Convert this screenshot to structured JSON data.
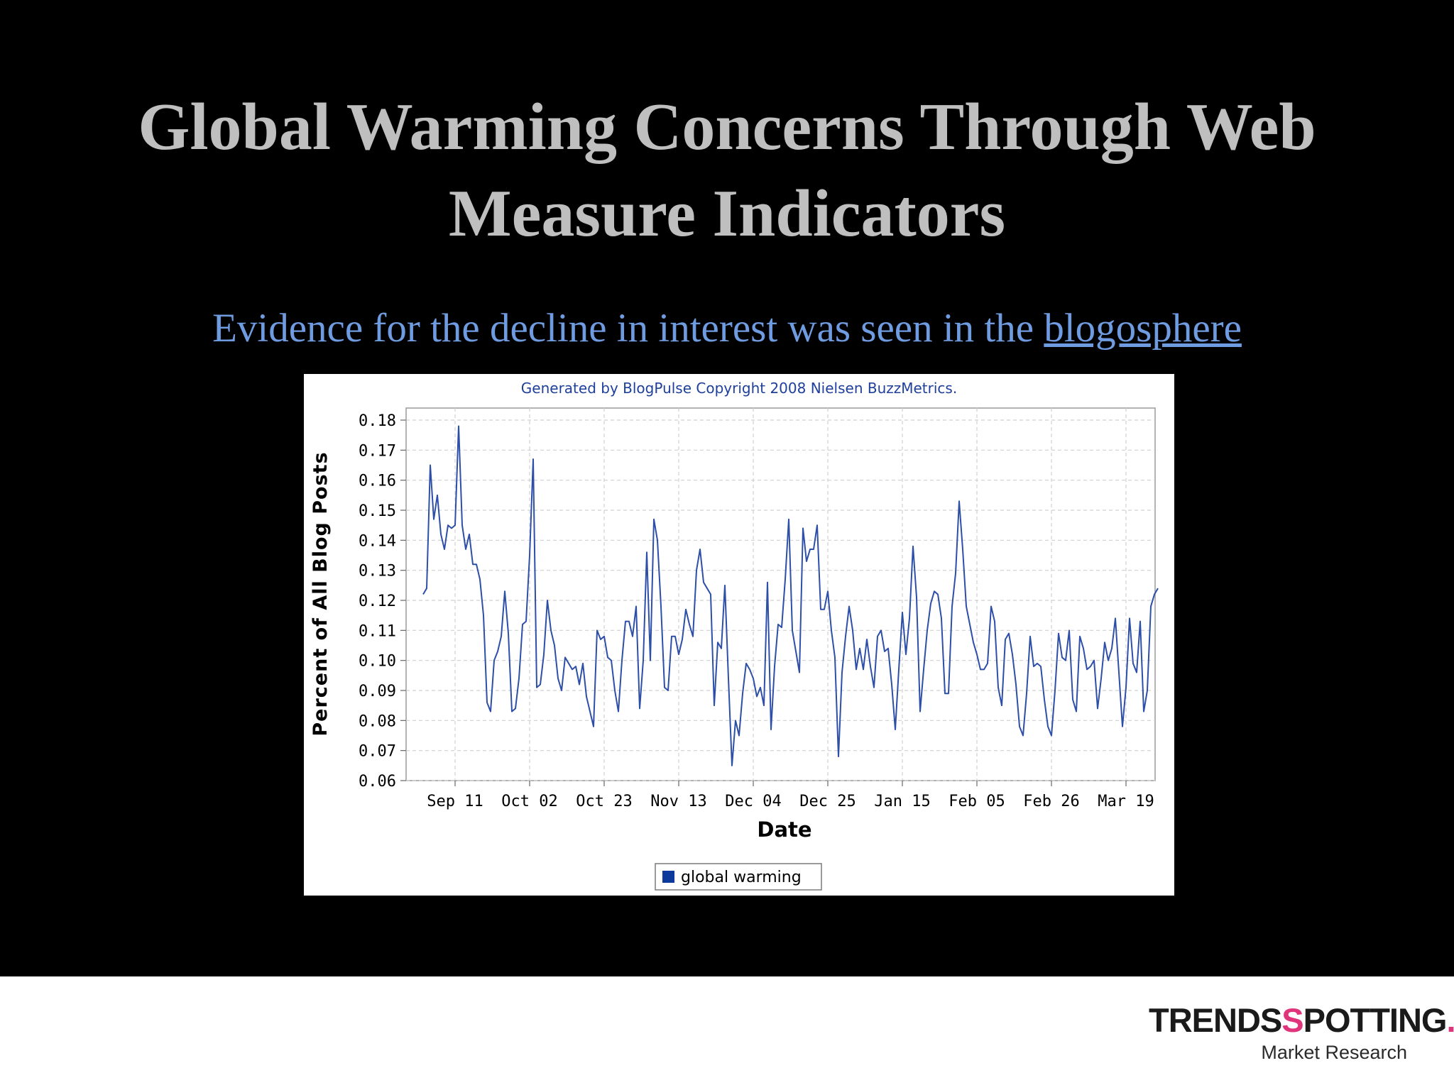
{
  "slide": {
    "title_line1": "Global Warming Concerns Through Web",
    "title_line2": "Measure Indicators",
    "subtitle_text": "Evidence for the decline in interest was seen in the ",
    "subtitle_link": "blogosphere"
  },
  "logo": {
    "brand_part1": "TRENDS",
    "brand_mark": "S",
    "brand_part2": "POTTING",
    "brand_dot": ".",
    "tagline": "Market Research"
  },
  "chart_data": {
    "type": "line",
    "title": "Generated by BlogPulse Copyright 2008 Nielsen BuzzMetrics.",
    "xlabel": "Date",
    "ylabel": "Percent of All Blog Posts",
    "ylim": [
      0.06,
      0.18
    ],
    "yticks": [
      "0.18",
      "0.17",
      "0.16",
      "0.15",
      "0.14",
      "0.13",
      "0.12",
      "0.11",
      "0.10",
      "0.09",
      "0.08",
      "0.07",
      "0.06"
    ],
    "xticks": [
      "Sep 11",
      "Oct 02",
      "Oct 23",
      "Nov 13",
      "Dec 04",
      "Dec 25",
      "Jan 15",
      "Feb 05",
      "Feb 26",
      "Mar 19"
    ],
    "x_start_day": -9,
    "grid": true,
    "legend_position": "bottom-center",
    "line_color": "#2e4fa8",
    "legend_swatch_color": "#0b3a9c",
    "series": [
      {
        "name": "global warming",
        "values": [
          0.122,
          0.124,
          0.165,
          0.147,
          0.155,
          0.142,
          0.137,
          0.145,
          0.144,
          0.145,
          0.178,
          0.145,
          0.137,
          0.142,
          0.132,
          0.132,
          0.127,
          0.115,
          0.086,
          0.083,
          0.1,
          0.103,
          0.108,
          0.123,
          0.109,
          0.083,
          0.084,
          0.094,
          0.112,
          0.113,
          0.135,
          0.167,
          0.091,
          0.092,
          0.102,
          0.12,
          0.11,
          0.105,
          0.094,
          0.09,
          0.101,
          0.099,
          0.097,
          0.098,
          0.092,
          0.099,
          0.088,
          0.083,
          0.078,
          0.11,
          0.107,
          0.108,
          0.101,
          0.1,
          0.09,
          0.083,
          0.1,
          0.113,
          0.113,
          0.108,
          0.118,
          0.084,
          0.1,
          0.136,
          0.1,
          0.147,
          0.14,
          0.118,
          0.091,
          0.09,
          0.108,
          0.108,
          0.102,
          0.107,
          0.117,
          0.112,
          0.108,
          0.13,
          0.137,
          0.126,
          0.124,
          0.122,
          0.085,
          0.106,
          0.104,
          0.125,
          0.094,
          0.065,
          0.08,
          0.075,
          0.089,
          0.099,
          0.097,
          0.094,
          0.088,
          0.091,
          0.085,
          0.126,
          0.077,
          0.098,
          0.112,
          0.111,
          0.127,
          0.147,
          0.11,
          0.103,
          0.096,
          0.144,
          0.133,
          0.137,
          0.137,
          0.145,
          0.117,
          0.117,
          0.123,
          0.11,
          0.101,
          0.068,
          0.096,
          0.108,
          0.118,
          0.11,
          0.097,
          0.104,
          0.097,
          0.107,
          0.098,
          0.091,
          0.108,
          0.11,
          0.103,
          0.104,
          0.092,
          0.077,
          0.097,
          0.116,
          0.102,
          0.114,
          0.138,
          0.121,
          0.083,
          0.097,
          0.11,
          0.119,
          0.123,
          0.122,
          0.114,
          0.089,
          0.089,
          0.118,
          0.129,
          0.153,
          0.137,
          0.118,
          0.112,
          0.106,
          0.102,
          0.097,
          0.097,
          0.099,
          0.118,
          0.113,
          0.091,
          0.085,
          0.107,
          0.109,
          0.102,
          0.092,
          0.078,
          0.075,
          0.089,
          0.108,
          0.098,
          0.099,
          0.098,
          0.087,
          0.078,
          0.075,
          0.09,
          0.109,
          0.101,
          0.1,
          0.11,
          0.087,
          0.083,
          0.108,
          0.104,
          0.097,
          0.098,
          0.1,
          0.084,
          0.094,
          0.106,
          0.1,
          0.104,
          0.114,
          0.096,
          0.078,
          0.091,
          0.114,
          0.099,
          0.096,
          0.113,
          0.083,
          0.09,
          0.118,
          0.122,
          0.124
        ]
      }
    ]
  }
}
